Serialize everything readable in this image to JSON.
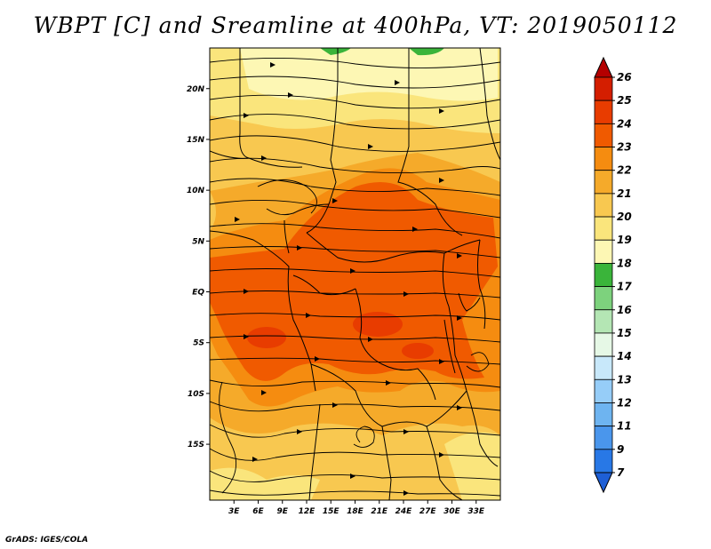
{
  "title": "WBPT [C] and Sreamline at 400hPa, VT: 2019050112",
  "credit": "GrADS: IGES/COLA",
  "map": {
    "lon_range": [
      0,
      36
    ],
    "lat_range": [
      -20.5,
      24
    ],
    "lon_ticks": [
      {
        "value": 3,
        "label": "3E"
      },
      {
        "value": 6,
        "label": "6E"
      },
      {
        "value": 9,
        "label": "9E"
      },
      {
        "value": 12,
        "label": "12E"
      },
      {
        "value": 15,
        "label": "15E"
      },
      {
        "value": 18,
        "label": "18E"
      },
      {
        "value": 21,
        "label": "21E"
      },
      {
        "value": 24,
        "label": "24E"
      },
      {
        "value": 27,
        "label": "27E"
      },
      {
        "value": 30,
        "label": "30E"
      },
      {
        "value": 33,
        "label": "33E"
      }
    ],
    "lat_ticks": [
      {
        "value": 20,
        "label": "20N"
      },
      {
        "value": 15,
        "label": "15N"
      },
      {
        "value": 10,
        "label": "10N"
      },
      {
        "value": 5,
        "label": "5N"
      },
      {
        "value": 0,
        "label": "EQ"
      },
      {
        "value": -5,
        "label": "5S"
      },
      {
        "value": -10,
        "label": "10S"
      },
      {
        "value": -15,
        "label": "15S"
      }
    ]
  },
  "colorbar": {
    "labels": [
      "26",
      "25",
      "24",
      "23",
      "22",
      "21",
      "20",
      "19",
      "18",
      "17",
      "16",
      "15",
      "14",
      "13",
      "12",
      "11",
      "9",
      "7"
    ],
    "colors": [
      "#b40000",
      "#d41e00",
      "#e83c00",
      "#f05a00",
      "#f58c10",
      "#f5aa2a",
      "#f8c850",
      "#fae57c",
      "#fdf7b4",
      "#3ab43a",
      "#7dd27d",
      "#b4e6b4",
      "#e6f8e6",
      "#c8e8fa",
      "#96cdf8",
      "#6eb4f0",
      "#4a96ec",
      "#2878e6",
      "#1e5fd6"
    ]
  }
}
